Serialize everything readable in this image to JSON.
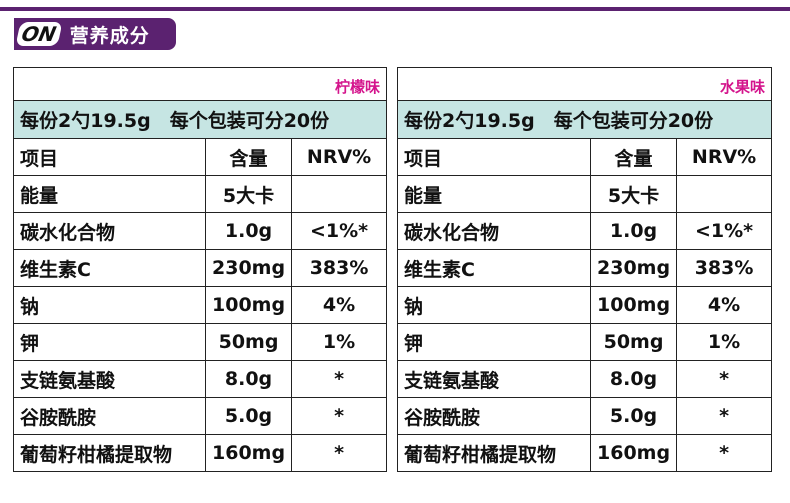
{
  "header": {
    "logo": "ON",
    "title": "营养成分"
  },
  "tables": [
    {
      "flavor": "柠檬味",
      "serving": "每份2勺19.5g　每个包装可分20份",
      "columns": [
        "项目",
        "含量",
        "NRV%"
      ],
      "rows": [
        [
          "能量",
          "5大卡",
          ""
        ],
        [
          "碳水化合物",
          "1.0g",
          "<1%*"
        ],
        [
          "维生素C",
          "230mg",
          "383%"
        ],
        [
          "钠",
          "100mg",
          "4%"
        ],
        [
          "钾",
          "50mg",
          "1%"
        ],
        [
          "支链氨基酸",
          "8.0g",
          "*"
        ],
        [
          "谷胺酰胺",
          "5.0g",
          "*"
        ],
        [
          "葡萄籽柑橘提取物",
          "160mg",
          "*"
        ]
      ]
    },
    {
      "flavor": "水果味",
      "serving": "每份2勺19.5g　每个包装可分20份",
      "columns": [
        "项目",
        "含量",
        "NRV%"
      ],
      "rows": [
        [
          "能量",
          "5大卡",
          ""
        ],
        [
          "碳水化合物",
          "1.0g",
          "<1%*"
        ],
        [
          "维生素C",
          "230mg",
          "383%"
        ],
        [
          "钠",
          "100mg",
          "4%"
        ],
        [
          "钾",
          "50mg",
          "1%"
        ],
        [
          "支链氨基酸",
          "8.0g",
          "*"
        ],
        [
          "谷胺酰胺",
          "5.0g",
          "*"
        ],
        [
          "葡萄籽柑橘提取物",
          "160mg",
          "*"
        ]
      ]
    }
  ]
}
